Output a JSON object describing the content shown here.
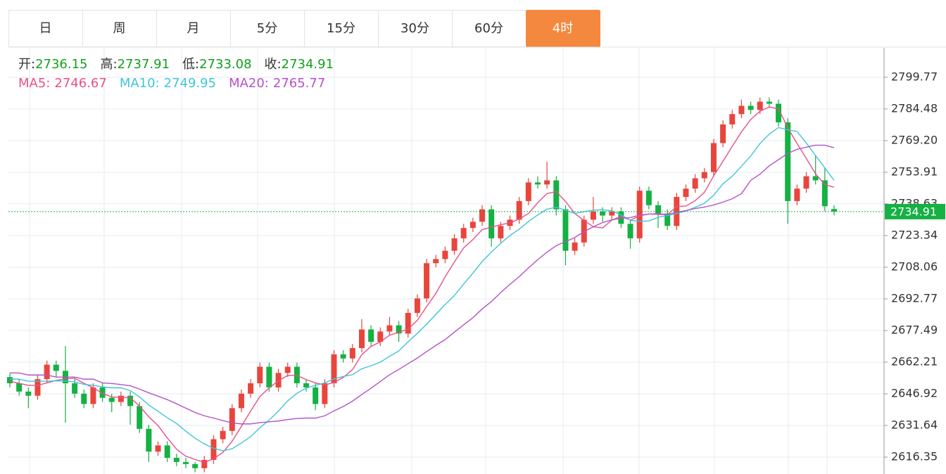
{
  "tabs": [
    "日",
    "周",
    "月",
    "5分",
    "15分",
    "30分",
    "60分",
    "4时"
  ],
  "active_tab": 7,
  "chart_data": {
    "type": "candlestick",
    "up_color": "#e8453c",
    "down_color": "#14b143",
    "ohlc_labels": [
      "开:",
      "高:",
      "低:",
      "收:"
    ],
    "candles": [
      [
        2655,
        2657,
        2650,
        2652
      ],
      [
        2652,
        2654,
        2646,
        2648
      ],
      [
        2648,
        2650,
        2640,
        2646
      ],
      [
        2646,
        2656,
        2644,
        2654
      ],
      [
        2654,
        2663,
        2652,
        2661
      ],
      [
        2661,
        2663,
        2655,
        2658
      ],
      [
        2658,
        2670,
        2633,
        2652
      ],
      [
        2652,
        2654,
        2645,
        2647
      ],
      [
        2647,
        2649,
        2640,
        2642
      ],
      [
        2642,
        2652,
        2640,
        2650
      ],
      [
        2650,
        2652,
        2643,
        2645
      ],
      [
        2645,
        2647,
        2638,
        2643
      ],
      [
        2643,
        2648,
        2641,
        2646
      ],
      [
        2646,
        2648,
        2632,
        2641
      ],
      [
        2641,
        2643,
        2628,
        2630
      ],
      [
        2630,
        2632,
        2614,
        2619
      ],
      [
        2619,
        2624,
        2617,
        2622
      ],
      [
        2622,
        2624,
        2614,
        2616
      ],
      [
        2616,
        2618,
        2612,
        2614
      ],
      [
        2614,
        2616,
        2611,
        2613
      ],
      [
        2613,
        2614,
        2609,
        2611
      ],
      [
        2611,
        2617,
        2609,
        2615
      ],
      [
        2615,
        2627,
        2613,
        2625
      ],
      [
        2625,
        2631,
        2623,
        2629
      ],
      [
        2629,
        2642,
        2627,
        2640
      ],
      [
        2640,
        2649,
        2638,
        2647
      ],
      [
        2647,
        2654,
        2645,
        2652
      ],
      [
        2652,
        2662,
        2650,
        2660
      ],
      [
        2660,
        2662,
        2648,
        2650
      ],
      [
        2650,
        2659,
        2648,
        2657
      ],
      [
        2657,
        2662,
        2655,
        2660
      ],
      [
        2660,
        2662,
        2650,
        2652
      ],
      [
        2652,
        2654,
        2648,
        2650
      ],
      [
        2650,
        2652,
        2639,
        2642
      ],
      [
        2642,
        2654,
        2640,
        2652
      ],
      [
        2652,
        2668,
        2650,
        2666
      ],
      [
        2666,
        2668,
        2662,
        2664
      ],
      [
        2664,
        2671,
        2662,
        2669
      ],
      [
        2669,
        2683,
        2667,
        2678
      ],
      [
        2678,
        2680,
        2670,
        2672
      ],
      [
        2672,
        2679,
        2670,
        2677
      ],
      [
        2677,
        2684,
        2675,
        2680
      ],
      [
        2680,
        2682,
        2672,
        2676
      ],
      [
        2676,
        2688,
        2674,
        2686
      ],
      [
        2686,
        2695,
        2684,
        2693
      ],
      [
        2693,
        2712,
        2691,
        2710
      ],
      [
        2710,
        2714,
        2708,
        2712
      ],
      [
        2712,
        2718,
        2710,
        2716
      ],
      [
        2716,
        2724,
        2714,
        2722
      ],
      [
        2722,
        2729,
        2720,
        2727
      ],
      [
        2727,
        2732,
        2725,
        2730
      ],
      [
        2730,
        2738,
        2728,
        2736
      ],
      [
        2736,
        2738,
        2718,
        2722
      ],
      [
        2722,
        2730,
        2720,
        2728
      ],
      [
        2728,
        2733,
        2726,
        2731
      ],
      [
        2731,
        2742,
        2729,
        2740
      ],
      [
        2740,
        2751,
        2738,
        2749
      ],
      [
        2749,
        2752,
        2746,
        2748
      ],
      [
        2748,
        2759,
        2746,
        2750
      ],
      [
        2750,
        2752,
        2733,
        2736
      ],
      [
        2736,
        2738,
        2709,
        2716
      ],
      [
        2716,
        2722,
        2714,
        2720
      ],
      [
        2720,
        2733,
        2718,
        2731
      ],
      [
        2731,
        2742,
        2729,
        2735
      ],
      [
        2735,
        2737,
        2730,
        2733
      ],
      [
        2733,
        2737,
        2731,
        2735
      ],
      [
        2735,
        2737,
        2727,
        2729
      ],
      [
        2729,
        2731,
        2717,
        2722
      ],
      [
        2722,
        2747,
        2720,
        2745
      ],
      [
        2745,
        2747,
        2736,
        2738
      ],
      [
        2738,
        2740,
        2727,
        2734
      ],
      [
        2734,
        2736,
        2726,
        2728
      ],
      [
        2728,
        2744,
        2726,
        2742
      ],
      [
        2742,
        2748,
        2740,
        2746
      ],
      [
        2746,
        2753,
        2744,
        2751
      ],
      [
        2751,
        2756,
        2749,
        2754
      ],
      [
        2754,
        2770,
        2752,
        2768
      ],
      [
        2768,
        2779,
        2766,
        2777
      ],
      [
        2777,
        2784,
        2775,
        2782
      ],
      [
        2782,
        2789,
        2780,
        2786
      ],
      [
        2786,
        2788,
        2782,
        2784
      ],
      [
        2784,
        2790,
        2782,
        2788
      ],
      [
        2788,
        2790,
        2785,
        2787
      ],
      [
        2787,
        2789,
        2776,
        2778
      ],
      [
        2778,
        2780,
        2729,
        2740
      ],
      [
        2740,
        2748,
        2738,
        2746
      ],
      [
        2746,
        2754,
        2744,
        2752
      ],
      [
        2752,
        2762,
        2748,
        2750
      ],
      [
        2750,
        2756,
        2735,
        2737.5
      ],
      [
        2736.15,
        2737.91,
        2733.08,
        2734.91
      ]
    ],
    "series": [
      {
        "name": "MA5:",
        "color": "#e8508a",
        "values": [
          2653,
          2652,
          2651,
          2651,
          2652.2,
          2653.4,
          2654.2,
          2654.4,
          2652.0,
          2649.8,
          2647.2,
          2645.4,
          2645.2,
          2645.0,
          2641.0,
          2635.8,
          2631.6,
          2625.6,
          2620.2,
          2616.8,
          2615.2,
          2613.8,
          2615.6,
          2618.6,
          2624.0,
          2631.2,
          2638.6,
          2645.6,
          2649.8,
          2653.2,
          2655.8,
          2655.8,
          2653.8,
          2652.2,
          2651.2,
          2652.4,
          2654.8,
          2658.6,
          2665.8,
          2669.8,
          2672.0,
          2675.2,
          2676.6,
          2678.2,
          2682.4,
          2689.0,
          2695.4,
          2703.4,
          2710.6,
          2717.4,
          2721.4,
          2726.2,
          2727.4,
          2728.6,
          2729.4,
          2731.4,
          2734.0,
          2739.2,
          2743.6,
          2744.6,
          2739.8,
          2734.0,
          2730.6,
          2727.6,
          2727.0,
          2730.8,
          2732.6,
          2730.8,
          2732.8,
          2733.8,
          2733.6,
          2733.4,
          2737.4,
          2737.6,
          2740.2,
          2744.2,
          2752.2,
          2759.2,
          2766.4,
          2773.4,
          2779.4,
          2783.4,
          2785.4,
          2784.6,
          2775.4,
          2767.8,
          2760.6,
          2753.2,
          2748,
          2746.67
        ]
      },
      {
        "name": "MA10:",
        "color": "#3fc5d9",
        "values": [
          2654,
          2654,
          2653,
          2653,
          2653,
          2653.2,
          2653.1,
          2652.7,
          2651.5,
          2651.0,
          2650.3,
          2649.8,
          2649.8,
          2648.5,
          2645.4,
          2641.5,
          2638.5,
          2635.4,
          2632.6,
          2628.9,
          2625.5,
          2622.7,
          2620.6,
          2619.4,
          2620.4,
          2623.2,
          2626.2,
          2630.6,
          2634.2,
          2638.6,
          2643.5,
          2647.2,
          2649.7,
          2651.0,
          2652.2,
          2654.1,
          2655.3,
          2656.2,
          2659.0,
          2660.5,
          2662.2,
          2665.0,
          2667.6,
          2672.0,
          2676.1,
          2680.5,
          2685.3,
          2690.0,
          2694.4,
          2699.9,
          2705.2,
          2710.8,
          2715.4,
          2719.6,
          2723.4,
          2726.4,
          2730.1,
          2733.3,
          2736.1,
          2737.0,
          2735.6,
          2734.0,
          2734.9,
          2735.6,
          2735.8,
          2735.3,
          2733.3,
          2730.7,
          2730.2,
          2730.4,
          2732.2,
          2733.0,
          2734.1,
          2735.2,
          2737.0,
          2738.9,
          2742.8,
          2748.3,
          2752.0,
          2756.8,
          2761.8,
          2767.8,
          2772.3,
          2775.5,
          2774.4,
          2773.6,
          2768,
          2762,
          2756,
          2749.95
        ]
      },
      {
        "name": "MA20:",
        "color": "#b552c8",
        "values": [
          2657,
          2657,
          2656,
          2656,
          2656,
          2655,
          2655,
          2655,
          2654,
          2654,
          2652.2,
          2651.9,
          2651.4,
          2650.8,
          2649.2,
          2647.4,
          2645.8,
          2644.1,
          2642.1,
          2640.0,
          2637.9,
          2636.3,
          2635.2,
          2634.0,
          2632.9,
          2632.4,
          2632.4,
          2633.0,
          2633.4,
          2633.8,
          2634.5,
          2635.0,
          2635.2,
          2635.2,
          2636.3,
          2638.7,
          2640.8,
          2643.4,
          2646.6,
          2649.6,
          2652.9,
          2656.1,
          2658.7,
          2661.5,
          2664.2,
          2667.3,
          2670.3,
          2673.1,
          2676.7,
          2680.2,
          2683.7,
          2687.9,
          2691.5,
          2695.8,
          2699.8,
          2703.5,
          2707.7,
          2711.7,
          2715.3,
          2718.5,
          2720.4,
          2722.4,
          2725.2,
          2727.6,
          2729.6,
          2730.9,
          2731.7,
          2732.0,
          2733.2,
          2733.7,
          2733.9,
          2733.5,
          2734.5,
          2735.4,
          2736.4,
          2737.1,
          2738.1,
          2739.5,
          2741.1,
          2743.6,
          2750,
          2753,
          2757,
          2760,
          2763,
          2765,
          2766,
          2767,
          2767,
          2765.77
        ]
      }
    ],
    "ylim": [
      2608.2,
      2814.0
    ],
    "yticks": [
      2616.35,
      2631.64,
      2646.92,
      2662.21,
      2677.49,
      2692.77,
      2708.06,
      2723.34,
      2738.63,
      2753.91,
      {
        "value": 2769.2,
        "label": "2769.20"
      },
      2784.48,
      2799.77
    ],
    "grid": true
  }
}
